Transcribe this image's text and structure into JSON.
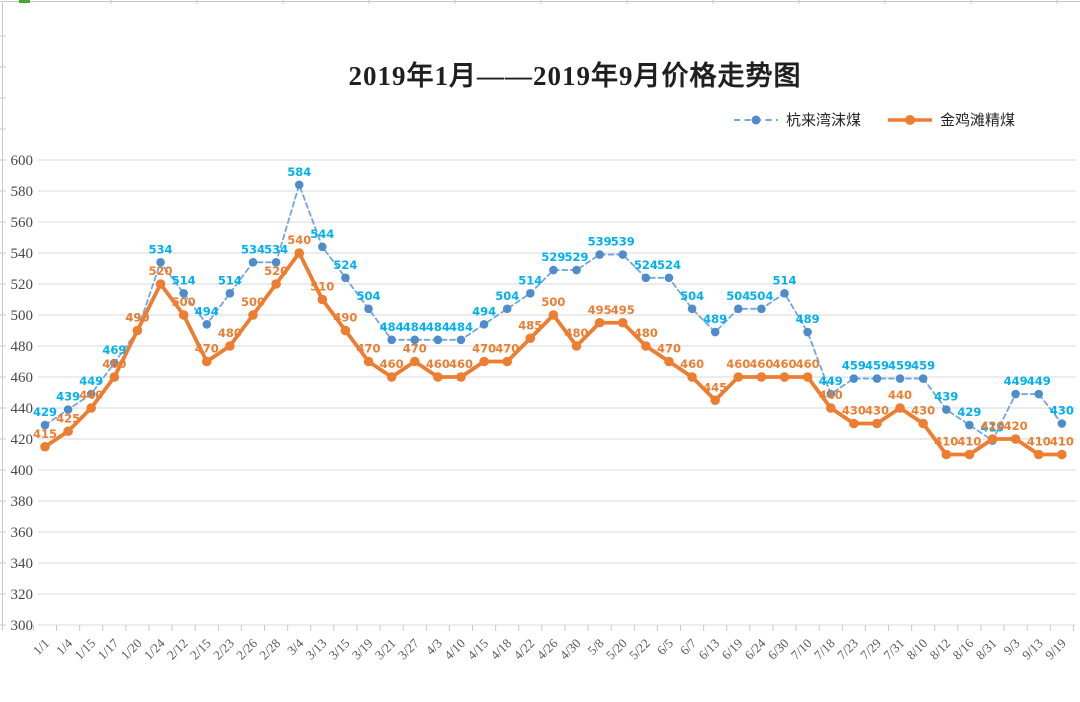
{
  "chart_data": {
    "type": "line",
    "title": "2019年1月——2019年9月价格走势图",
    "categories": [
      "1/1",
      "1/4",
      "1/15",
      "1/17",
      "1/20",
      "1/24",
      "2/12",
      "2/15",
      "2/23",
      "2/26",
      "2/28",
      "3/4",
      "3/13",
      "3/15",
      "3/19",
      "3/21",
      "3/27",
      "4/3",
      "4/10",
      "4/15",
      "4/18",
      "4/22",
      "4/26",
      "4/30",
      "5/8",
      "5/20",
      "5/22",
      "6/5",
      "6/7",
      "6/13",
      "6/19",
      "6/24",
      "6/30",
      "7/10",
      "7/18",
      "7/23",
      "7/29",
      "7/31",
      "8/10",
      "8/12",
      "8/16",
      "8/31",
      "9/3",
      "9/13",
      "9/19"
    ],
    "series": [
      {
        "name": "杭来湾沫煤",
        "style": "dashed",
        "values": [
          429,
          439,
          449,
          469,
          490,
          534,
          514,
          494,
          514,
          534,
          534,
          584,
          544,
          524,
          504,
          484,
          484,
          484,
          484,
          494,
          504,
          514,
          529,
          529,
          539,
          539,
          524,
          524,
          504,
          489,
          504,
          504,
          514,
          489,
          449,
          459,
          459,
          459,
          459,
          439,
          429,
          419,
          449,
          449,
          430
        ],
        "line_color": "#6FA7DE",
        "point_color": "#4E8CCB",
        "label_color": "#00B0F0"
      },
      {
        "name": "金鸡滩精煤",
        "style": "solid",
        "values": [
          415,
          425,
          440,
          460,
          490,
          520,
          500,
          470,
          480,
          500,
          520,
          540,
          510,
          490,
          470,
          460,
          470,
          460,
          460,
          470,
          470,
          485,
          500,
          480,
          495,
          495,
          480,
          470,
          460,
          445,
          460,
          460,
          460,
          460,
          440,
          430,
          430,
          440,
          430,
          410,
          410,
          420,
          420,
          410,
          410
        ],
        "line_color": "#ED7D31",
        "point_color": "#ED7D31",
        "label_color": "#ED7D31"
      }
    ],
    "ylim": [
      300,
      600
    ],
    "ytick_step": 20,
    "grid": "horizontal",
    "legend_position": "top-right",
    "grid_color": "#D9D9D9",
    "axis_text_color": "#595959",
    "tick_color": "#C9C9C9",
    "frame": {
      "line_color": "#C8C8C8",
      "accent_color": "#44A832"
    }
  }
}
